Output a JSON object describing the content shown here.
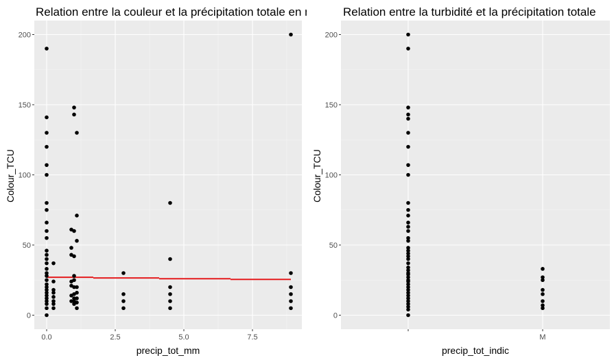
{
  "chart_data": [
    {
      "type": "scatter",
      "title": "Relation entre la couleur et la précipitation totale en mm",
      "xlabel": "precip_tot_mm",
      "ylabel": "Colour_TCU",
      "xlim": [
        -0.45,
        9.3
      ],
      "ylim": [
        -10,
        210
      ],
      "x_ticks": [
        0,
        2.5,
        5,
        7.5
      ],
      "x_tick_labels": [
        "0.0",
        "2.5",
        "5.0",
        "7.5"
      ],
      "y_ticks": [
        0,
        50,
        100,
        150,
        200
      ],
      "y_tick_labels": [
        "0",
        "50",
        "100",
        "150",
        "200"
      ],
      "grid": true,
      "background": "#ebebeb",
      "point_color": "#000000",
      "points": [
        [
          0,
          0
        ],
        [
          0,
          5
        ],
        [
          0,
          8
        ],
        [
          0,
          10
        ],
        [
          0,
          12
        ],
        [
          0,
          14
        ],
        [
          0,
          16
        ],
        [
          0,
          18
        ],
        [
          0,
          20
        ],
        [
          0,
          22
        ],
        [
          0,
          25
        ],
        [
          0,
          28
        ],
        [
          0,
          30
        ],
        [
          0,
          33
        ],
        [
          0,
          37
        ],
        [
          0,
          40
        ],
        [
          0,
          43
        ],
        [
          0,
          46
        ],
        [
          0,
          55
        ],
        [
          0,
          60
        ],
        [
          0,
          66
        ],
        [
          0,
          75
        ],
        [
          0,
          80
        ],
        [
          0,
          100
        ],
        [
          0,
          107
        ],
        [
          0,
          120
        ],
        [
          0,
          130
        ],
        [
          0,
          141
        ],
        [
          0,
          190
        ],
        [
          0.25,
          5
        ],
        [
          0.25,
          8
        ],
        [
          0.25,
          10
        ],
        [
          0.25,
          13
        ],
        [
          0.25,
          16
        ],
        [
          0.25,
          18
        ],
        [
          0.25,
          24
        ],
        [
          0.25,
          37
        ],
        [
          0.9,
          10
        ],
        [
          0.9,
          14
        ],
        [
          0.9,
          21
        ],
        [
          0.9,
          24
        ],
        [
          0.9,
          43
        ],
        [
          0.9,
          48
        ],
        [
          0.9,
          61
        ],
        [
          1.0,
          8
        ],
        [
          1.0,
          10
        ],
        [
          1.0,
          12
        ],
        [
          1.0,
          15
        ],
        [
          1.0,
          20
        ],
        [
          1.0,
          25
        ],
        [
          1.0,
          28
        ],
        [
          1.0,
          42
        ],
        [
          1.0,
          60
        ],
        [
          1.0,
          143
        ],
        [
          1.0,
          148
        ],
        [
          1.1,
          5
        ],
        [
          1.1,
          9
        ],
        [
          1.1,
          12
        ],
        [
          1.1,
          16
        ],
        [
          1.1,
          20
        ],
        [
          1.1,
          53
        ],
        [
          1.1,
          71
        ],
        [
          1.1,
          130
        ],
        [
          2.8,
          5
        ],
        [
          2.8,
          10
        ],
        [
          2.8,
          15
        ],
        [
          2.8,
          30
        ],
        [
          4.5,
          5
        ],
        [
          4.5,
          10
        ],
        [
          4.5,
          15
        ],
        [
          4.5,
          20
        ],
        [
          4.5,
          40
        ],
        [
          4.5,
          80
        ],
        [
          8.9,
          5
        ],
        [
          8.9,
          10
        ],
        [
          8.9,
          15
        ],
        [
          8.9,
          20
        ],
        [
          8.9,
          30
        ],
        [
          8.9,
          200
        ]
      ],
      "trend_line": {
        "color": "#e41a1c",
        "segments": [
          [
            [
              0,
              27
            ],
            [
              1.7,
              27
            ]
          ],
          [
            [
              1.7,
              26.5
            ],
            [
              4.1,
              26.5
            ]
          ],
          [
            [
              4.1,
              26
            ],
            [
              6.7,
              26
            ]
          ],
          [
            [
              6.7,
              25.5
            ],
            [
              8.9,
              25.5
            ]
          ]
        ]
      }
    },
    {
      "type": "scatter",
      "title": "Relation entre la turbidité et la précipitation totale",
      "xlabel": "precip_tot_indic",
      "ylabel": "Colour_TCU",
      "categories": [
        "",
        "M"
      ],
      "ylim": [
        -10,
        210
      ],
      "y_ticks": [
        0,
        50,
        100,
        150,
        200
      ],
      "y_tick_labels": [
        "0",
        "50",
        "100",
        "150",
        "200"
      ],
      "grid": true,
      "background": "#ebebeb",
      "point_color": "#000000",
      "points": [
        [
          "",
          0
        ],
        [
          "",
          4
        ],
        [
          "",
          6
        ],
        [
          "",
          8
        ],
        [
          "",
          10
        ],
        [
          "",
          12
        ],
        [
          "",
          14
        ],
        [
          "",
          16
        ],
        [
          "",
          18
        ],
        [
          "",
          20
        ],
        [
          "",
          22
        ],
        [
          "",
          24
        ],
        [
          "",
          25
        ],
        [
          "",
          27
        ],
        [
          "",
          29
        ],
        [
          "",
          30
        ],
        [
          "",
          32
        ],
        [
          "",
          34
        ],
        [
          "",
          37
        ],
        [
          "",
          40
        ],
        [
          "",
          42
        ],
        [
          "",
          44
        ],
        [
          "",
          46
        ],
        [
          "",
          48
        ],
        [
          "",
          53
        ],
        [
          "",
          55
        ],
        [
          "",
          60
        ],
        [
          "",
          63
        ],
        [
          "",
          66
        ],
        [
          "",
          71
        ],
        [
          "",
          75
        ],
        [
          "",
          80
        ],
        [
          "",
          100
        ],
        [
          "",
          107
        ],
        [
          "",
          120
        ],
        [
          "",
          130
        ],
        [
          "",
          140
        ],
        [
          "",
          143
        ],
        [
          "",
          148
        ],
        [
          "",
          190
        ],
        [
          "",
          200
        ],
        [
          "M",
          5
        ],
        [
          "M",
          7
        ],
        [
          "M",
          10
        ],
        [
          "M",
          15
        ],
        [
          "M",
          18
        ],
        [
          "M",
          25
        ],
        [
          "M",
          27
        ],
        [
          "M",
          33
        ]
      ]
    }
  ]
}
